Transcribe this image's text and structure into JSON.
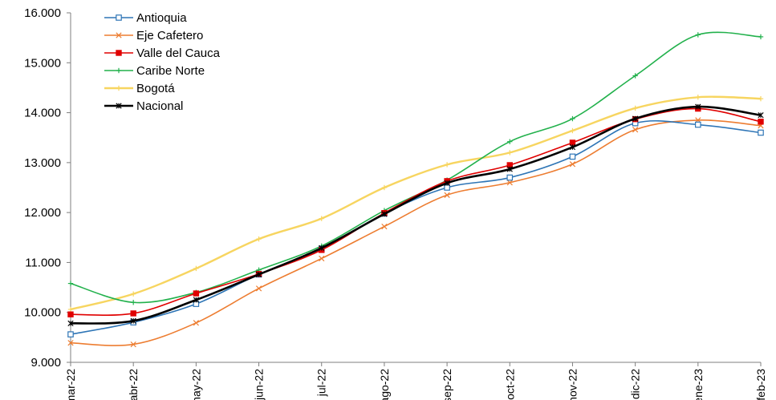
{
  "chart_data": {
    "type": "line",
    "title": "",
    "xlabel": "",
    "ylabel": "",
    "categories": [
      "mar-22",
      "abr-22",
      "may-22",
      "jun-22",
      "jul-22",
      "ago-22",
      "sep-22",
      "oct-22",
      "nov-22",
      "dic-22",
      "ene-23",
      "feb-23"
    ],
    "ylim": [
      9000,
      16000
    ],
    "y_ticks": [
      9000,
      10000,
      11000,
      12000,
      13000,
      14000,
      15000,
      16000
    ],
    "y_tick_labels": [
      "9.000",
      "10.000",
      "11.000",
      "12.000",
      "13.000",
      "14.000",
      "15.000",
      "16.000"
    ],
    "grid": false,
    "legend_position": "top-left",
    "series": [
      {
        "name": "Antioquia",
        "color": "#2e75b6",
        "marker": "square-open",
        "values": [
          9560,
          9800,
          10170,
          10760,
          11270,
          11980,
          12500,
          12700,
          13120,
          13790,
          13760,
          13600
        ]
      },
      {
        "name": "Eje Cafetero",
        "color": "#ed7d31",
        "marker": "x",
        "values": [
          9390,
          9360,
          9790,
          10480,
          11080,
          11720,
          12350,
          12600,
          12970,
          13660,
          13850,
          13740
        ]
      },
      {
        "name": "Valle del Cauca",
        "color": "#e00000",
        "marker": "square-filled",
        "values": [
          9960,
          9980,
          10380,
          10770,
          11250,
          11990,
          12630,
          12950,
          13400,
          13870,
          14080,
          13820
        ]
      },
      {
        "name": "Caribe Norte",
        "color": "#22b14c",
        "marker": "plus",
        "values": [
          10580,
          10200,
          10400,
          10850,
          11330,
          12040,
          12650,
          13420,
          13880,
          14740,
          15560,
          15520
        ]
      },
      {
        "name": "Bogotá",
        "color": "#f7d560",
        "marker": "plus",
        "values": [
          10060,
          10370,
          10880,
          11470,
          11880,
          12500,
          12960,
          13200,
          13640,
          14090,
          14310,
          14280
        ]
      },
      {
        "name": "Nacional",
        "color": "#000000",
        "marker": "star",
        "values": [
          9780,
          9830,
          10250,
          10760,
          11290,
          11970,
          12590,
          12870,
          13310,
          13880,
          14120,
          13950
        ]
      }
    ]
  }
}
